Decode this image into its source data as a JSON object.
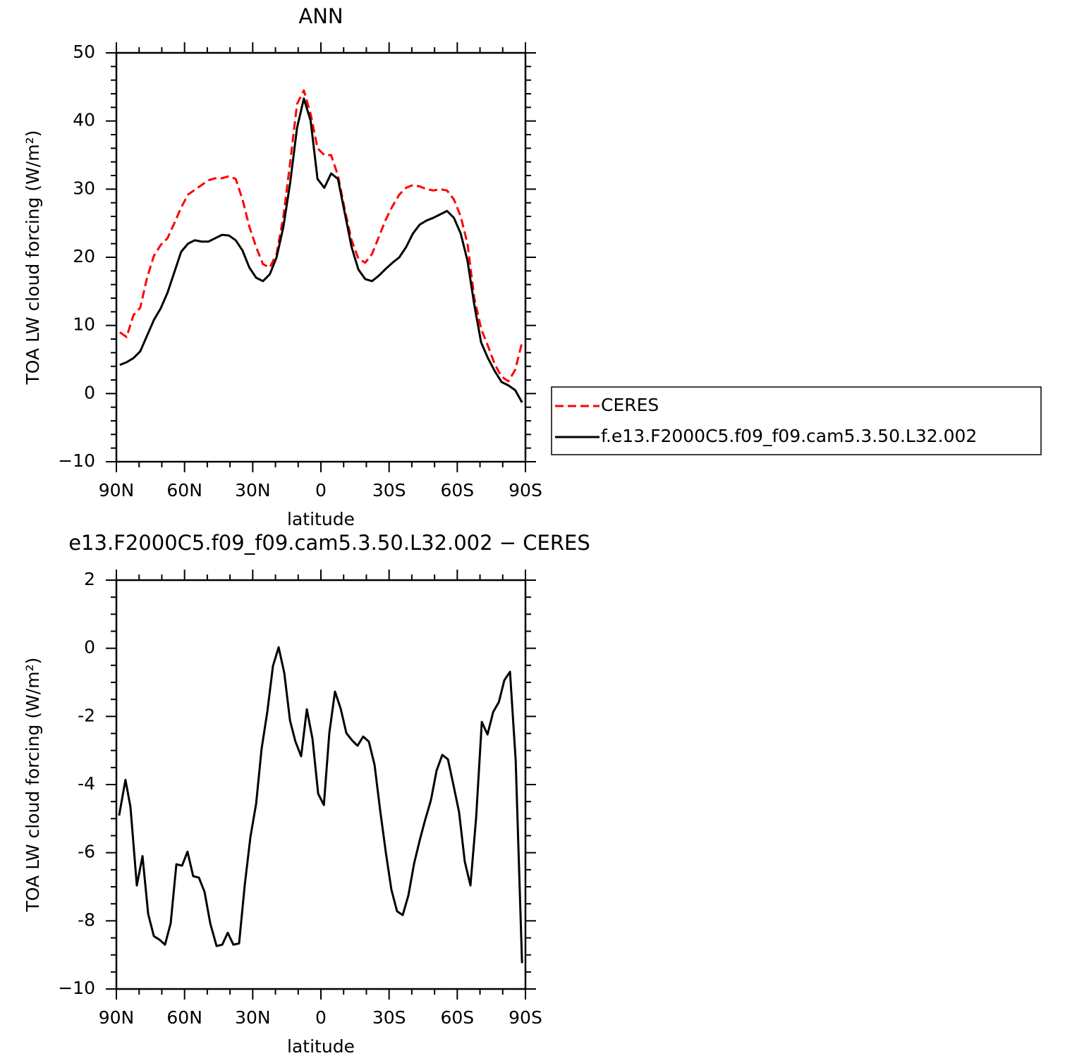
{
  "chart_data": [
    {
      "type": "line",
      "title": "ANN",
      "xlabel": "latitude",
      "ylabel": "TOA LW cloud forcing (W/m²)",
      "x": [
        88.5,
        85.5,
        82.5,
        79.5,
        76.5,
        73.5,
        70.5,
        67.5,
        64.5,
        61.5,
        58.5,
        55.5,
        52.5,
        49.5,
        46.5,
        43.5,
        40.5,
        37.5,
        34.5,
        31.5,
        28.5,
        25.5,
        22.5,
        19.5,
        16.5,
        13.5,
        10.5,
        7.5,
        4.5,
        1.5,
        -1.5,
        -4.5,
        -7.5,
        -10.5,
        -13.5,
        -16.5,
        -19.5,
        -22.5,
        -25.5,
        -28.5,
        -31.5,
        -34.5,
        -37.5,
        -40.5,
        -43.5,
        -46.5,
        -49.5,
        -52.5,
        -55.5,
        -58.5,
        -61.5,
        -64.5,
        -67.5,
        -70.5,
        -73.5,
        -76.5,
        -79.5,
        -82.5,
        -85.5,
        -88.5
      ],
      "series": [
        {
          "name": "CERES",
          "color": "#ff0000",
          "dashed": true,
          "values": [
            9.0,
            8.3,
            11.5,
            12.6,
            17,
            20.2,
            21.8,
            22.8,
            25,
            27.3,
            29.2,
            29.9,
            30.6,
            31.3,
            31.6,
            31.6,
            31.9,
            31.5,
            28.5,
            24.5,
            21.5,
            19,
            18.5,
            20.5,
            26,
            34,
            42.5,
            44.5,
            41,
            36,
            35,
            35,
            32,
            27,
            22.5,
            19.8,
            19.2,
            20.5,
            23,
            25.5,
            27.5,
            29.2,
            30.2,
            30.6,
            30.4,
            30,
            29.8,
            30,
            29.8,
            28.5,
            26,
            22,
            14,
            9.5,
            7,
            4.3,
            2.5,
            1.8,
            3.5,
            7.5
          ]
        },
        {
          "name": "f.e13.F2000C5.f09_f09.cam5.3.50.L32.002",
          "color": "#000000",
          "dashed": false,
          "values": [
            4.2,
            4.6,
            5.2,
            6.2,
            8.5,
            10.8,
            12.5,
            14.8,
            17.8,
            20.8,
            22,
            22.5,
            22.3,
            22.3,
            22.8,
            23.3,
            23.2,
            22.5,
            21,
            18.5,
            17,
            16.5,
            17.5,
            20,
            24.5,
            31,
            39,
            43.3,
            40,
            31.5,
            30.2,
            32.3,
            31.5,
            26.5,
            21.5,
            18.2,
            16.8,
            16.5,
            17.3,
            18.3,
            19.2,
            20,
            21.5,
            23.5,
            24.8,
            25.4,
            25.8,
            26.3,
            26.8,
            25.8,
            23.5,
            19.5,
            13,
            7.5,
            5.2,
            3.3,
            1.7,
            1.2,
            0.5,
            -1.3
          ]
        }
      ],
      "xlim": [
        90,
        -90
      ],
      "xticks": [
        {
          "value": 90,
          "label": "90N"
        },
        {
          "value": 60,
          "label": "60N"
        },
        {
          "value": 30,
          "label": "30N"
        },
        0,
        {
          "value": -30,
          "label": "30S"
        },
        {
          "value": -60,
          "label": "60S"
        },
        {
          "value": -90,
          "label": "90S"
        }
      ],
      "xminorticks": [
        80,
        70,
        50,
        40,
        20,
        10,
        -10,
        -20,
        -40,
        -50,
        -70,
        -80
      ],
      "ylim": [
        -10,
        50
      ],
      "yticks": [
        {
          "value": -10,
          "label": "−10"
        },
        0,
        10,
        20,
        30,
        40,
        50
      ],
      "yminorticks": [
        -8,
        -6,
        -4,
        -2,
        2,
        4,
        6,
        8,
        12,
        14,
        16,
        18,
        22,
        24,
        26,
        28,
        32,
        34,
        36,
        38,
        42,
        44,
        46,
        48
      ],
      "legend": "right"
    },
    {
      "type": "line",
      "title": "e13.F2000C5.f09_f09.cam5.3.50.L32.002 − CERES",
      "xlabel": "latitude",
      "ylabel": "TOA LW cloud forcing (W/m²)",
      "x": [
        88.8,
        86.0,
        83.8,
        81.0,
        78.5,
        76.0,
        73.5,
        71.1,
        68.6,
        66.1,
        63.6,
        61.1,
        58.7,
        56.2,
        53.7,
        51.2,
        48.7,
        45.9,
        43.4,
        41.0,
        38.5,
        36.0,
        33.5,
        31.0,
        28.5,
        26.1,
        23.6,
        21.1,
        18.6,
        16.1,
        13.6,
        11.2,
        8.7,
        6.2,
        3.7,
        1.2,
        -1.3,
        -3.7,
        -6.2,
        -8.7,
        -11.2,
        -13.7,
        -16.1,
        -18.6,
        -21.1,
        -23.6,
        -26.1,
        -28.6,
        -31.0,
        -33.5,
        -36.0,
        -38.5,
        -41.0,
        -43.5,
        -45.9,
        -48.4,
        -50.9,
        -53.4,
        -55.9,
        -58.4,
        -60.8,
        -63.3,
        -65.8,
        -68.3,
        -70.8,
        -73.3,
        -75.8,
        -78.3,
        -80.7,
        -83.2,
        -85.7,
        -88.5
      ],
      "series": [
        {
          "color": "#000000",
          "dashed": false,
          "values": [
            -4.91,
            -3.86,
            -4.66,
            -6.96,
            -6.1,
            -7.8,
            -8.45,
            -8.55,
            -8.7,
            -8.07,
            -6.34,
            -6.38,
            -5.97,
            -6.69,
            -6.73,
            -7.15,
            -8.07,
            -8.74,
            -8.7,
            -8.35,
            -8.7,
            -8.66,
            -6.94,
            -5.53,
            -4.56,
            -2.95,
            -1.87,
            -0.52,
            0.03,
            -0.73,
            -2.12,
            -2.74,
            -3.17,
            -1.79,
            -2.66,
            -4.27,
            -4.6,
            -2.49,
            -1.27,
            -1.77,
            -2.49,
            -2.7,
            -2.86,
            -2.59,
            -2.74,
            -3.42,
            -4.77,
            -6.01,
            -7.08,
            -7.72,
            -7.83,
            -7.25,
            -6.32,
            -5.63,
            -5.03,
            -4.46,
            -3.59,
            -3.13,
            -3.26,
            -4.04,
            -4.81,
            -6.26,
            -6.96,
            -4.97,
            -2.16,
            -2.53,
            -1.87,
            -1.58,
            -0.94,
            -0.69,
            -3.28,
            -9.24
          ]
        }
      ],
      "xlim": [
        90,
        -90
      ],
      "xticks": [
        {
          "value": 90,
          "label": "90N"
        },
        {
          "value": 60,
          "label": "60N"
        },
        {
          "value": 30,
          "label": "30N"
        },
        0,
        {
          "value": -30,
          "label": "30S"
        },
        {
          "value": -60,
          "label": "60S"
        },
        {
          "value": -90,
          "label": "90S"
        }
      ],
      "xminorticks": [
        80,
        70,
        50,
        40,
        20,
        10,
        -10,
        -20,
        -40,
        -50,
        -70,
        -80
      ],
      "ylim": [
        -10,
        2
      ],
      "yticks": [
        {
          "value": -10,
          "label": "−10"
        },
        -8,
        -6,
        -4,
        -2,
        0,
        2
      ],
      "yminorticks": [
        -9.5,
        -9,
        -8.5,
        -7.5,
        -7,
        -6.5,
        -5.5,
        -5,
        -4.5,
        -3.5,
        -3,
        -2.5,
        -1.5,
        -1,
        -0.5,
        0.5,
        1,
        1.5
      ]
    }
  ]
}
